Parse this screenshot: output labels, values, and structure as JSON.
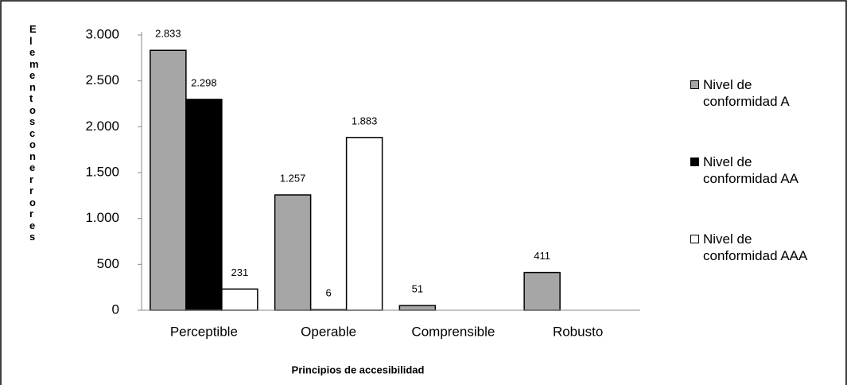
{
  "chart_data": {
    "type": "bar",
    "x_label": "Principios de accesibilidad",
    "y_label": "Elementos con errores",
    "categories": [
      "Perceptible",
      "Operable",
      "Comprensible",
      "Robusto"
    ],
    "series": [
      {
        "name": "Nivel de conformidad A",
        "color": "#a6a6a6",
        "values": [
          2833,
          1257,
          51,
          411
        ],
        "value_labels": [
          "2.833",
          "1.257",
          "51",
          "411"
        ]
      },
      {
        "name": "Nivel de conformidad AA",
        "color": "#000000",
        "values": [
          2298,
          6,
          null,
          null
        ],
        "value_labels": [
          "2.298",
          "6",
          null,
          null
        ]
      },
      {
        "name": "Nivel de conformidad AAA",
        "color": "#ffffff",
        "values": [
          231,
          1883,
          null,
          null
        ],
        "value_labels": [
          "231",
          "1.883",
          null,
          null
        ]
      }
    ],
    "ylim": [
      0,
      3000
    ],
    "yticks": [
      0,
      500,
      {
        "value": 1000,
        "label": "1.000"
      },
      {
        "value": 1500,
        "label": "1.500"
      },
      {
        "value": 2000,
        "label": "2.000"
      },
      {
        "value": 2500,
        "label": "2.500"
      },
      {
        "value": 3000,
        "label": "3.000"
      }
    ],
    "legend": "right"
  }
}
